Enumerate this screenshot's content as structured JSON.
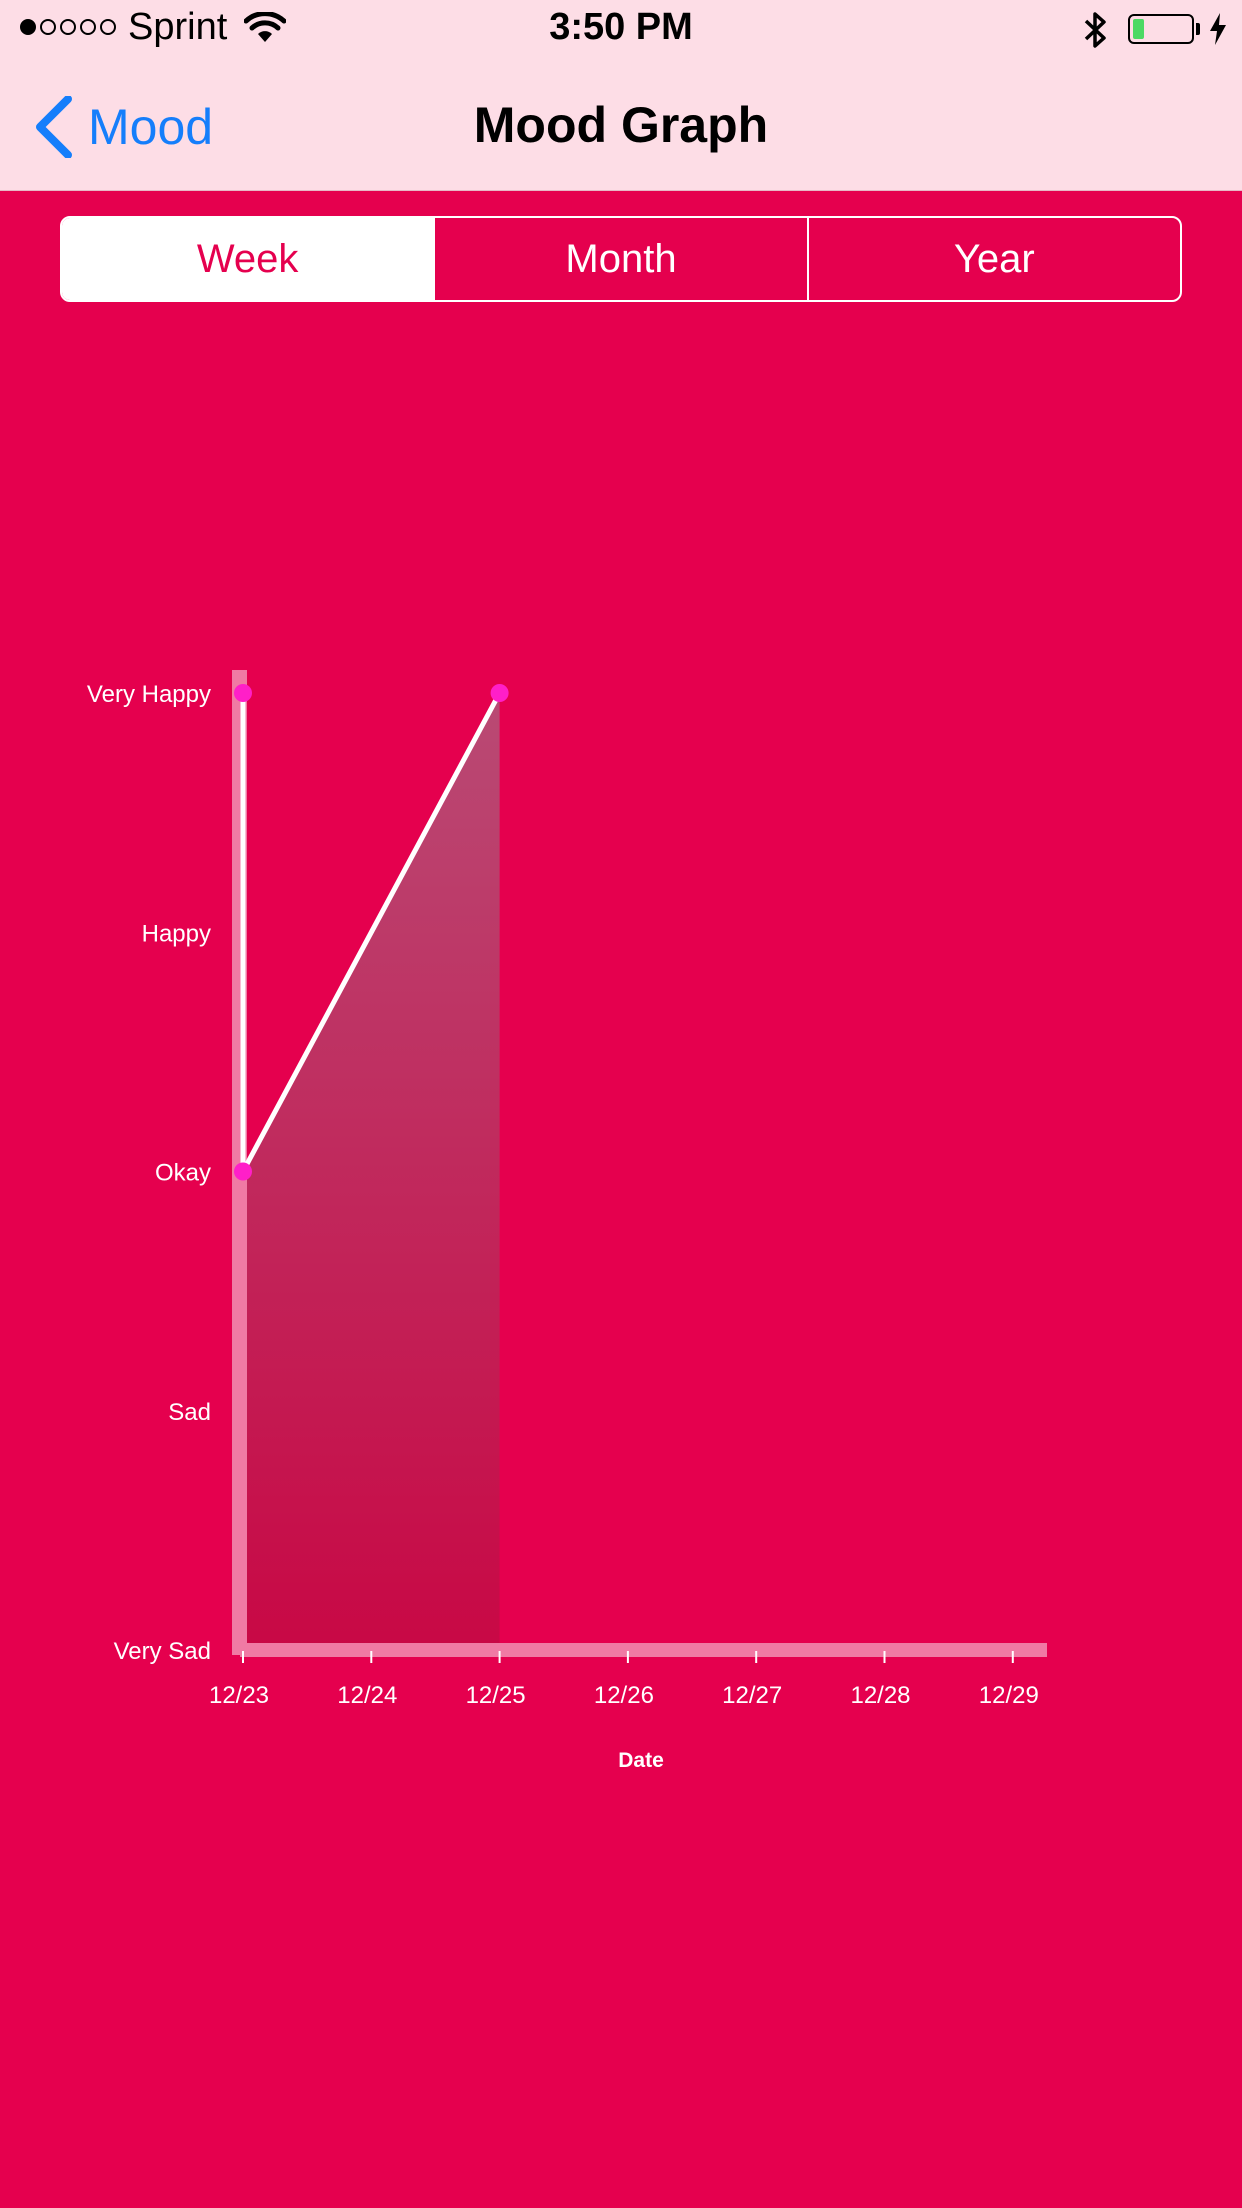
{
  "status_bar": {
    "carrier": "Sprint",
    "time": "3:50 PM",
    "signal_bars_filled": 1,
    "signal_bars_total": 5,
    "battery_level": 0.2,
    "battery_color": "#4cd964"
  },
  "nav": {
    "back_label": "Mood",
    "title": "Mood Graph",
    "tint": "#157efb"
  },
  "segments": {
    "options": [
      "Week",
      "Month",
      "Year"
    ],
    "selected": "Week"
  },
  "theme": {
    "background": "#e5004e",
    "navbar_background": "#fddde6",
    "point_color": "#ff1fc8"
  },
  "chart_data": {
    "type": "area",
    "x_label": "Date",
    "y_categories": [
      "Very Sad",
      "Sad",
      "Okay",
      "Happy",
      "Very Happy"
    ],
    "x_ticks": [
      "12/23",
      "12/24",
      "12/25",
      "12/26",
      "12/27",
      "12/28",
      "12/29"
    ],
    "series": [
      {
        "x": [
          "12/23",
          "12/23",
          "12/25"
        ],
        "y": [
          "Very Happy",
          "Okay",
          "Very Happy"
        ]
      }
    ],
    "grid": false
  }
}
